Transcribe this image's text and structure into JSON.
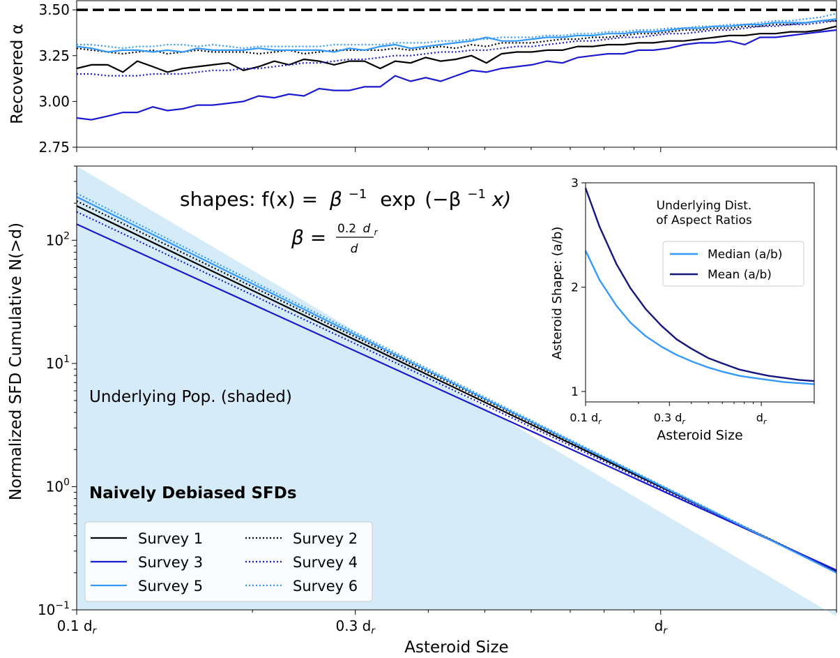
{
  "chart_data": [
    {
      "panel": "top",
      "type": "line",
      "ylabel": "Recovered α",
      "ylim": [
        2.75,
        3.55
      ],
      "yticks": [
        "2.75",
        "3.00",
        "3.25",
        "3.50"
      ],
      "xscale": "log",
      "x_note": "asteroid size in units of d_r",
      "xlim": [
        0.1,
        2.0
      ],
      "reference_line": {
        "y": 3.5,
        "style": "dashed",
        "color": "#000000"
      },
      "x": [
        0.1,
        0.106,
        0.113,
        0.12,
        0.127,
        0.135,
        0.143,
        0.152,
        0.161,
        0.171,
        0.182,
        0.193,
        0.205,
        0.218,
        0.231,
        0.245,
        0.26,
        0.276,
        0.293,
        0.311,
        0.331,
        0.351,
        0.373,
        0.396,
        0.42,
        0.446,
        0.474,
        0.503,
        0.534,
        0.567,
        0.602,
        0.639,
        0.679,
        0.721,
        0.765,
        0.812,
        0.863,
        0.916,
        0.972,
        1.032,
        1.096,
        1.164,
        1.236,
        1.312,
        1.393,
        1.479,
        1.571,
        1.668,
        1.771,
        1.88,
        2.0
      ],
      "series": [
        {
          "name": "Survey 1",
          "color": "#000000",
          "dash": "solid",
          "values": [
            3.18,
            3.2,
            3.2,
            3.16,
            3.22,
            3.19,
            3.16,
            3.18,
            3.19,
            3.2,
            3.21,
            3.17,
            3.19,
            3.22,
            3.2,
            3.23,
            3.22,
            3.2,
            3.22,
            3.22,
            3.18,
            3.22,
            3.21,
            3.24,
            3.22,
            3.23,
            3.25,
            3.21,
            3.26,
            3.27,
            3.27,
            3.28,
            3.28,
            3.3,
            3.3,
            3.31,
            3.31,
            3.32,
            3.32,
            3.33,
            3.33,
            3.34,
            3.35,
            3.36,
            3.36,
            3.37,
            3.37,
            3.38,
            3.38,
            3.39,
            3.41
          ]
        },
        {
          "name": "Survey 2",
          "color": "#000000",
          "dash": "dotted",
          "values": [
            3.29,
            3.28,
            3.27,
            3.26,
            3.27,
            3.28,
            3.26,
            3.27,
            3.28,
            3.27,
            3.27,
            3.27,
            3.26,
            3.27,
            3.28,
            3.26,
            3.27,
            3.28,
            3.28,
            3.28,
            3.28,
            3.29,
            3.28,
            3.29,
            3.3,
            3.29,
            3.31,
            3.3,
            3.32,
            3.32,
            3.32,
            3.33,
            3.34,
            3.34,
            3.35,
            3.35,
            3.36,
            3.37,
            3.37,
            3.38,
            3.39,
            3.39,
            3.4,
            3.4,
            3.41,
            3.41,
            3.42,
            3.42,
            3.43,
            3.44,
            3.44
          ]
        },
        {
          "name": "Survey 3",
          "color": "#1a1ad1",
          "dash": "solid",
          "values": [
            2.91,
            2.9,
            2.92,
            2.94,
            2.94,
            2.97,
            2.95,
            2.96,
            2.98,
            2.98,
            2.99,
            3.0,
            3.03,
            3.02,
            3.04,
            3.03,
            3.07,
            3.06,
            3.06,
            3.08,
            3.08,
            3.14,
            3.11,
            3.13,
            3.11,
            3.14,
            3.17,
            3.16,
            3.18,
            3.19,
            3.2,
            3.22,
            3.21,
            3.24,
            3.25,
            3.26,
            3.26,
            3.28,
            3.28,
            3.29,
            3.31,
            3.32,
            3.32,
            3.33,
            3.31,
            3.35,
            3.35,
            3.36,
            3.37,
            3.38,
            3.39
          ]
        },
        {
          "name": "Survey 4",
          "color": "#1a1ad1",
          "dash": "dotted",
          "values": [
            3.15,
            3.15,
            3.14,
            3.14,
            3.14,
            3.15,
            3.15,
            3.15,
            3.16,
            3.17,
            3.17,
            3.18,
            3.18,
            3.19,
            3.2,
            3.21,
            3.21,
            3.22,
            3.23,
            3.23,
            3.24,
            3.25,
            3.25,
            3.26,
            3.27,
            3.27,
            3.28,
            3.28,
            3.29,
            3.3,
            3.3,
            3.31,
            3.32,
            3.33,
            3.33,
            3.34,
            3.35,
            3.35,
            3.36,
            3.37,
            3.37,
            3.38,
            3.39,
            3.39,
            3.4,
            3.41,
            3.41,
            3.42,
            3.42,
            3.43,
            3.44
          ]
        },
        {
          "name": "Survey 5",
          "color": "#3399ff",
          "dash": "solid",
          "values": [
            3.3,
            3.29,
            3.27,
            3.28,
            3.28,
            3.27,
            3.28,
            3.27,
            3.29,
            3.28,
            3.28,
            3.28,
            3.29,
            3.28,
            3.28,
            3.28,
            3.28,
            3.27,
            3.29,
            3.28,
            3.3,
            3.31,
            3.29,
            3.3,
            3.31,
            3.32,
            3.33,
            3.35,
            3.33,
            3.33,
            3.34,
            3.35,
            3.35,
            3.36,
            3.36,
            3.37,
            3.37,
            3.38,
            3.38,
            3.39,
            3.4,
            3.4,
            3.41,
            3.41,
            3.42,
            3.42,
            3.43,
            3.43,
            3.43,
            3.44,
            3.45
          ]
        },
        {
          "name": "Survey 6",
          "color": "#3399ff",
          "dash": "dotted",
          "values": [
            3.31,
            3.31,
            3.3,
            3.29,
            3.3,
            3.3,
            3.31,
            3.31,
            3.3,
            3.31,
            3.3,
            3.29,
            3.3,
            3.3,
            3.3,
            3.3,
            3.3,
            3.31,
            3.31,
            3.31,
            3.31,
            3.32,
            3.32,
            3.32,
            3.33,
            3.33,
            3.34,
            3.34,
            3.35,
            3.35,
            3.35,
            3.36,
            3.36,
            3.37,
            3.37,
            3.38,
            3.38,
            3.39,
            3.39,
            3.4,
            3.4,
            3.41,
            3.41,
            3.42,
            3.42,
            3.43,
            3.44,
            3.44,
            3.45,
            3.46,
            3.48
          ]
        }
      ]
    },
    {
      "panel": "main",
      "type": "line",
      "ylabel": "Normalized SFD Cumulative N(>d)",
      "xlabel": "Asteroid Size",
      "yscale": "log",
      "ylim": [
        0.1,
        400
      ],
      "yticks": [
        {
          "base": "10",
          "exp": "2",
          "value": 100
        },
        {
          "base": "10",
          "exp": "1",
          "value": 10
        },
        {
          "base": "10",
          "exp": "0",
          "value": 1
        },
        {
          "base": "10",
          "exp": "−1",
          "value": 0.1
        }
      ],
      "xscale": "log",
      "xlim": [
        0.1,
        2.0
      ],
      "xticks": [
        {
          "text": "0.1 d",
          "sub": "r",
          "value": 0.1
        },
        {
          "text": "0.3 d",
          "sub": "r",
          "value": 0.3
        },
        {
          "text": "d",
          "sub": "r",
          "value": 1.0
        }
      ],
      "shaded": {
        "label": "Underlying Pop. (shaded)",
        "color": "#d6ebf8",
        "slope": -3.5,
        "y_at_1": 1.0
      },
      "series": [
        {
          "name": "Survey 1",
          "color": "#000000",
          "dash": "solid",
          "y_at_01": 190,
          "y_at_2": 0.205
        },
        {
          "name": "Survey 2",
          "color": "#000000",
          "dash": "dotted",
          "y_at_01": 208,
          "y_at_2": 0.205
        },
        {
          "name": "Survey 3",
          "color": "#1a1ad1",
          "dash": "solid",
          "y_at_01": 135,
          "y_at_2": 0.21
        },
        {
          "name": "Survey 4",
          "color": "#1a1ad1",
          "dash": "dotted",
          "y_at_01": 170,
          "y_at_2": 0.205
        },
        {
          "name": "Survey 5",
          "color": "#3399ff",
          "dash": "solid",
          "y_at_01": 225,
          "y_at_2": 0.2
        },
        {
          "name": "Survey 6",
          "color": "#3399ff",
          "dash": "dotted",
          "y_at_01": 240,
          "y_at_2": 0.2
        }
      ],
      "annotations": {
        "shapes_prefix": "shapes: f(x) =",
        "beta": "β",
        "neg1": "−1",
        "exp_text": "exp",
        "minus_beta": "(−β",
        "x_close": "x)",
        "beta_eq": "β =",
        "beta_num": "0.2",
        "beta_d": "d",
        "beta_r": "r",
        "beta_den": "d",
        "method": "Naively Debiased SFDs"
      },
      "legend": {
        "placement": "lower-left",
        "columns": 2
      }
    },
    {
      "panel": "inset",
      "type": "line",
      "title_lines": [
        "Underlying Dist.",
        "of Aspect Ratios"
      ],
      "ylabel": "Asteroid Shape: (a/b)",
      "xlabel": "Asteroid Size",
      "ylim": [
        0.9,
        3.0
      ],
      "yticks": [
        "1",
        "2",
        "3"
      ],
      "xscale": "log",
      "xlim": [
        0.1,
        2.0
      ],
      "xticks": [
        {
          "text": "0.1 d",
          "sub": "r",
          "value": 0.1
        },
        {
          "text": "0.3 d",
          "sub": "r",
          "value": 0.3
        },
        {
          "text": "d",
          "sub": "r",
          "value": 1.0
        }
      ],
      "x": [
        0.1,
        0.12,
        0.15,
        0.18,
        0.22,
        0.27,
        0.33,
        0.4,
        0.5,
        0.6,
        0.75,
        0.9,
        1.1,
        1.35,
        1.65,
        2.0
      ],
      "series": [
        {
          "name": "Median (a/b)",
          "color": "#3399ff",
          "values": [
            2.35,
            2.07,
            1.82,
            1.66,
            1.53,
            1.43,
            1.35,
            1.29,
            1.23,
            1.19,
            1.15,
            1.13,
            1.11,
            1.09,
            1.08,
            1.07
          ]
        },
        {
          "name": "Mean (a/b)",
          "color": "#151580",
          "values": [
            2.95,
            2.58,
            2.22,
            1.99,
            1.79,
            1.63,
            1.5,
            1.41,
            1.32,
            1.27,
            1.21,
            1.18,
            1.15,
            1.13,
            1.11,
            1.1
          ]
        }
      ]
    }
  ]
}
